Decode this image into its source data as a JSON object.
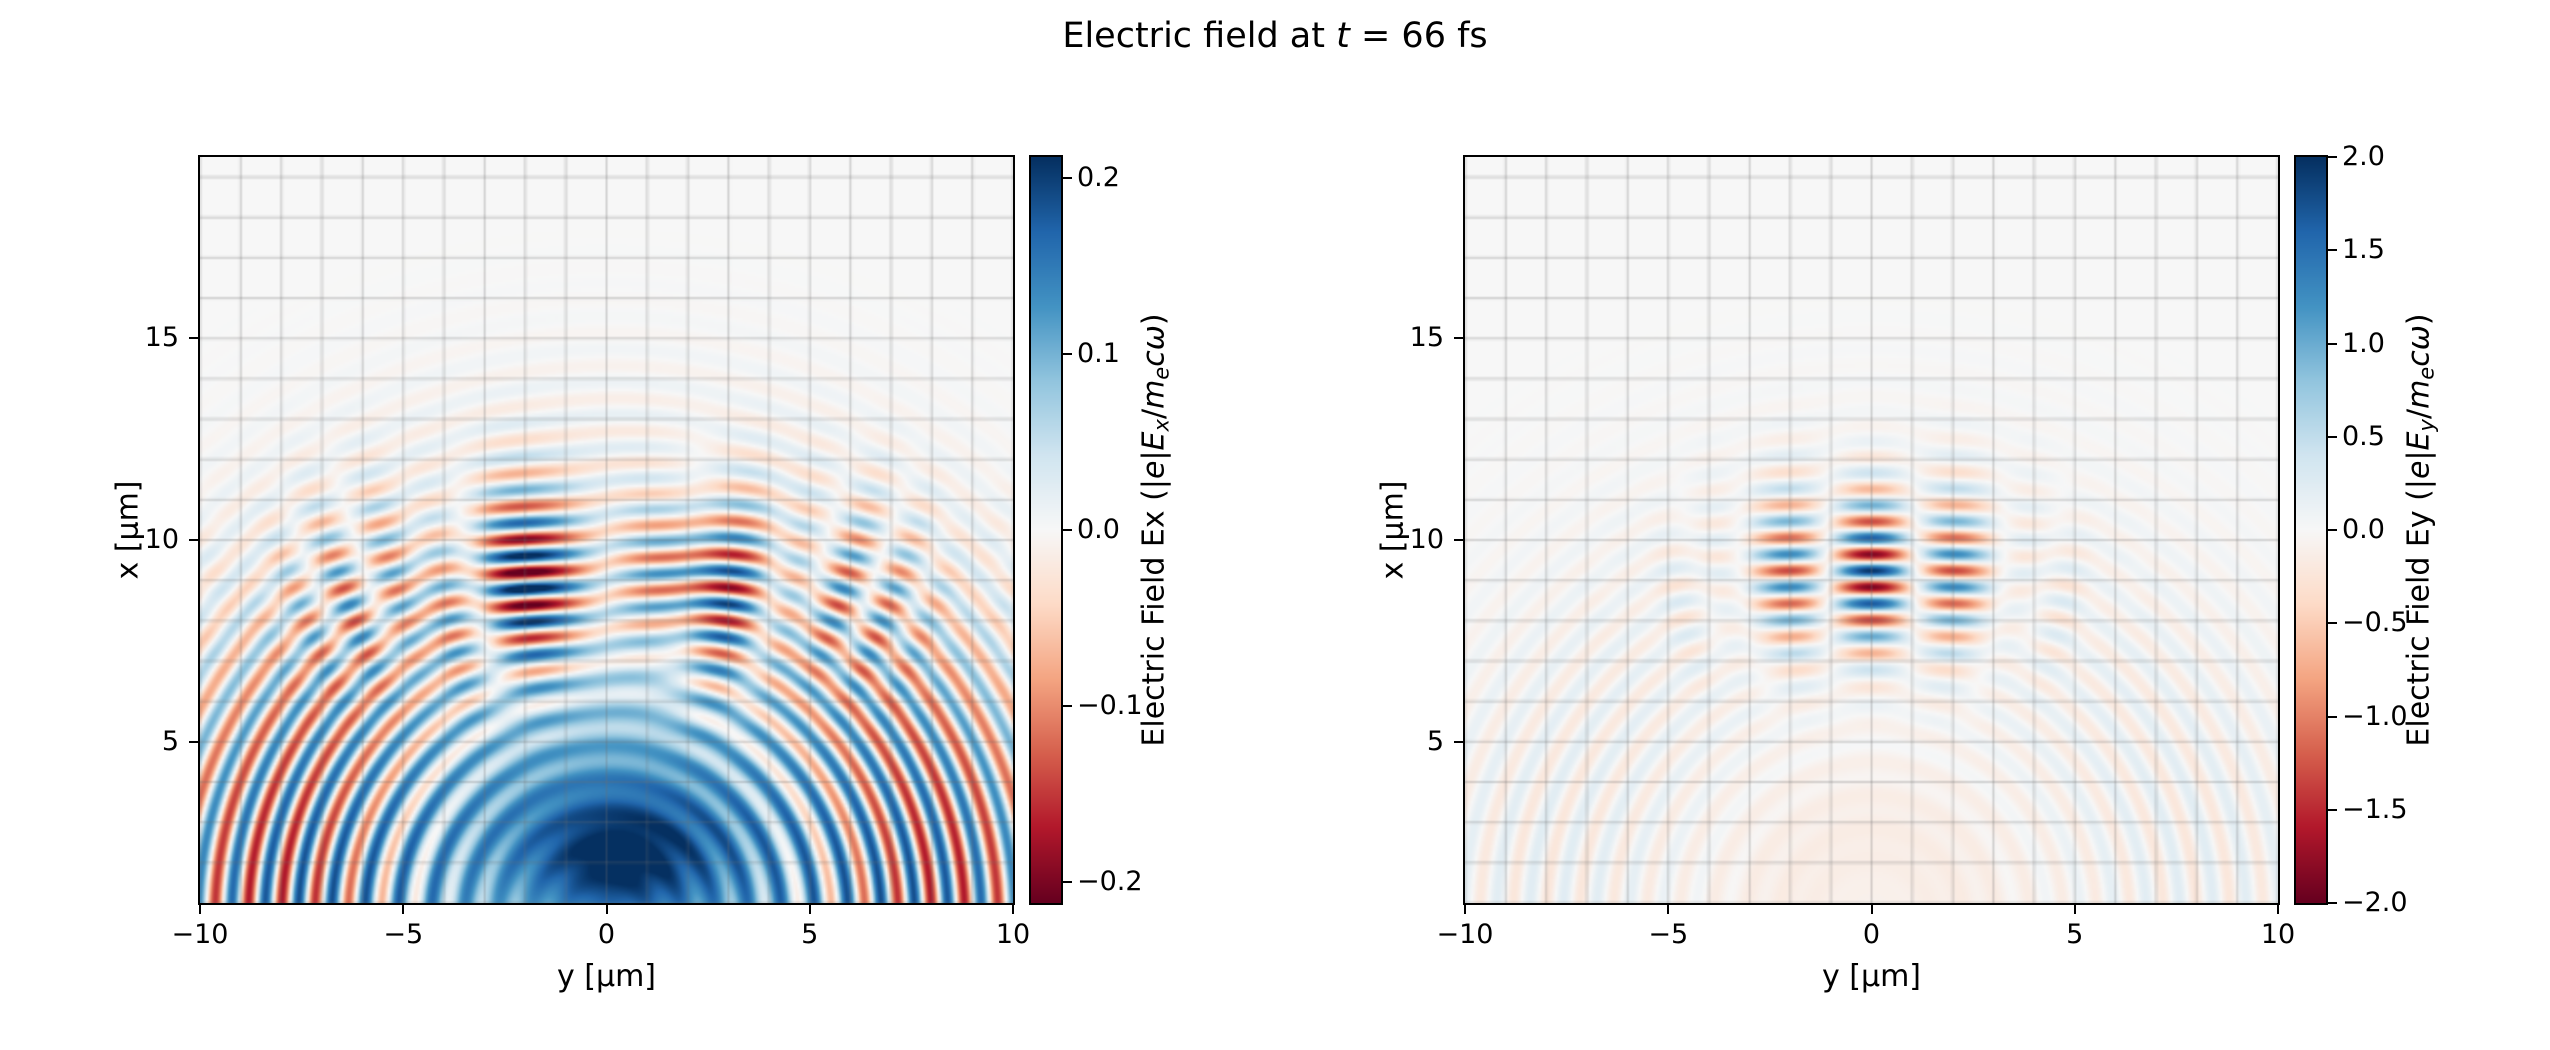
{
  "title": {
    "parts": [
      "Electric field at ",
      "t",
      " = 66 fs"
    ],
    "time_fs": 66
  },
  "chart_data": [
    {
      "type": "heatmap",
      "name": "Ex",
      "description": "2D map of normalized electric field Ex: concentric spherical wakefield wavefronts centered at bottom middle with a strong blue lobe near the origin, plus a horizontally-striped laser pulse region around x=6-12 um, |y|<8 um. Diverging red-white-blue colormap, gray minor grid every 1 um.",
      "xlabel": "y [μm]",
      "ylabel": "x [μm]",
      "x_range": [
        -10,
        10
      ],
      "y_range": [
        1,
        19.5
      ],
      "x_ticks": [
        {
          "v": -10,
          "label": "−10"
        },
        {
          "v": -5,
          "label": "−5"
        },
        {
          "v": 0,
          "label": "0"
        },
        {
          "v": 5,
          "label": "5"
        },
        {
          "v": 10,
          "label": "10"
        }
      ],
      "y_ticks": [
        {
          "v": 5,
          "label": "5"
        },
        {
          "v": 10,
          "label": "10"
        },
        {
          "v": 15,
          "label": "15"
        }
      ],
      "grid": true,
      "grid_step": 1,
      "colormap": "RdBu",
      "colorbar": {
        "range": [
          -0.212,
          0.212
        ],
        "ticks": [
          {
            "v": 0.2,
            "label": "0.2"
          },
          {
            "v": 0.1,
            "label": "0.1"
          },
          {
            "v": 0.0,
            "label": "0.0"
          },
          {
            "v": -0.1,
            "label": "−0.1"
          },
          {
            "v": -0.2,
            "label": "−0.2"
          }
        ],
        "label_parts": [
          {
            "t": "Electric Field Ex (|",
            "style": "n"
          },
          {
            "t": "e",
            "style": "i"
          },
          {
            "t": "|",
            "style": "n"
          },
          {
            "t": "E",
            "style": "i"
          },
          {
            "t": "x",
            "style": "sub"
          },
          {
            "t": "/",
            "style": "n"
          },
          {
            "t": "m",
            "style": "i"
          },
          {
            "t": "e",
            "style": "sub"
          },
          {
            "t": "c",
            "style": "i"
          },
          {
            "t": "ω",
            "style": "i"
          },
          {
            "t": ")",
            "style": "n"
          }
        ]
      },
      "field_model": {
        "wavelength_um": 0.82,
        "source": {
          "y": 0.0,
          "x": 0.6
        },
        "rings": {
          "amplitude": 0.85,
          "r_peak": 8.0,
          "r_width": 4.2,
          "side_bias": 0.7
        },
        "wash": {
          "amplitude": 0.35,
          "r_peak": 4.2,
          "r_width": 2.4
        },
        "blob": {
          "amplitude": 1.0,
          "y0": 0.3,
          "x0": 2.0,
          "wy": 2.7,
          "wx": 2.0
        },
        "pulse": {
          "amplitude": 1.0,
          "y_center": 0.0,
          "x_center": 9.0,
          "x_width": 2.2,
          "y_width": 6.0,
          "trans_period": 9.0,
          "trans_mode": "sin",
          "phase": 0.0
        }
      }
    },
    {
      "type": "heatmap",
      "name": "Ey",
      "description": "2D map of normalized electric field Ey: dominated by the horizontally-striped laser pulse around x=6-12 um, |y|<5 um, with alternating blue/red bands split into transverse lobes; faint circular wakefield wavefronts elsewhere. Same diverging colormap and gray grid.",
      "xlabel": "y [μm]",
      "ylabel": "x [μm]",
      "x_range": [
        -10,
        10
      ],
      "y_range": [
        1,
        19.5
      ],
      "x_ticks": [
        {
          "v": -10,
          "label": "−10"
        },
        {
          "v": -5,
          "label": "−5"
        },
        {
          "v": 0,
          "label": "0"
        },
        {
          "v": 5,
          "label": "5"
        },
        {
          "v": 10,
          "label": "10"
        }
      ],
      "y_ticks": [
        {
          "v": 5,
          "label": "5"
        },
        {
          "v": 10,
          "label": "10"
        },
        {
          "v": 15,
          "label": "15"
        }
      ],
      "grid": true,
      "grid_step": 1,
      "colormap": "RdBu",
      "colorbar": {
        "range": [
          -2.0,
          2.0
        ],
        "ticks": [
          {
            "v": 2.0,
            "label": "2.0"
          },
          {
            "v": 1.5,
            "label": "1.5"
          },
          {
            "v": 1.0,
            "label": "1.0"
          },
          {
            "v": 0.5,
            "label": "0.5"
          },
          {
            "v": 0.0,
            "label": "0.0"
          },
          {
            "v": -0.5,
            "label": "−0.5"
          },
          {
            "v": -1.0,
            "label": "−1.0"
          },
          {
            "v": -1.5,
            "label": "−1.5"
          },
          {
            "v": -2.0,
            "label": "−2.0"
          }
        ],
        "label_parts": [
          {
            "t": "Electric Field Ey (|",
            "style": "n"
          },
          {
            "t": "e",
            "style": "i"
          },
          {
            "t": "|",
            "style": "n"
          },
          {
            "t": "E",
            "style": "i"
          },
          {
            "t": "y",
            "style": "sub"
          },
          {
            "t": "/",
            "style": "n"
          },
          {
            "t": "m",
            "style": "i"
          },
          {
            "t": "e",
            "style": "sub"
          },
          {
            "t": "c",
            "style": "i"
          },
          {
            "t": "ω",
            "style": "i"
          },
          {
            "t": ")",
            "style": "n"
          }
        ]
      },
      "field_model": {
        "wavelength_um": 0.82,
        "source": {
          "y": 0.0,
          "x": 0.6
        },
        "rings": {
          "amplitude": 0.12,
          "r_peak": 8.0,
          "r_width": 4.2,
          "side_bias": 0.4
        },
        "wash": {
          "amplitude": -0.07,
          "r_peak": 2.0,
          "r_width": 2.2
        },
        "pulse": {
          "amplitude": 1.0,
          "y_center": 0.0,
          "x_center": 9.2,
          "x_width": 2.0,
          "y_width": 3.1,
          "trans_period": 4.6,
          "trans_mode": "cos",
          "phase": 1.2
        }
      }
    }
  ]
}
